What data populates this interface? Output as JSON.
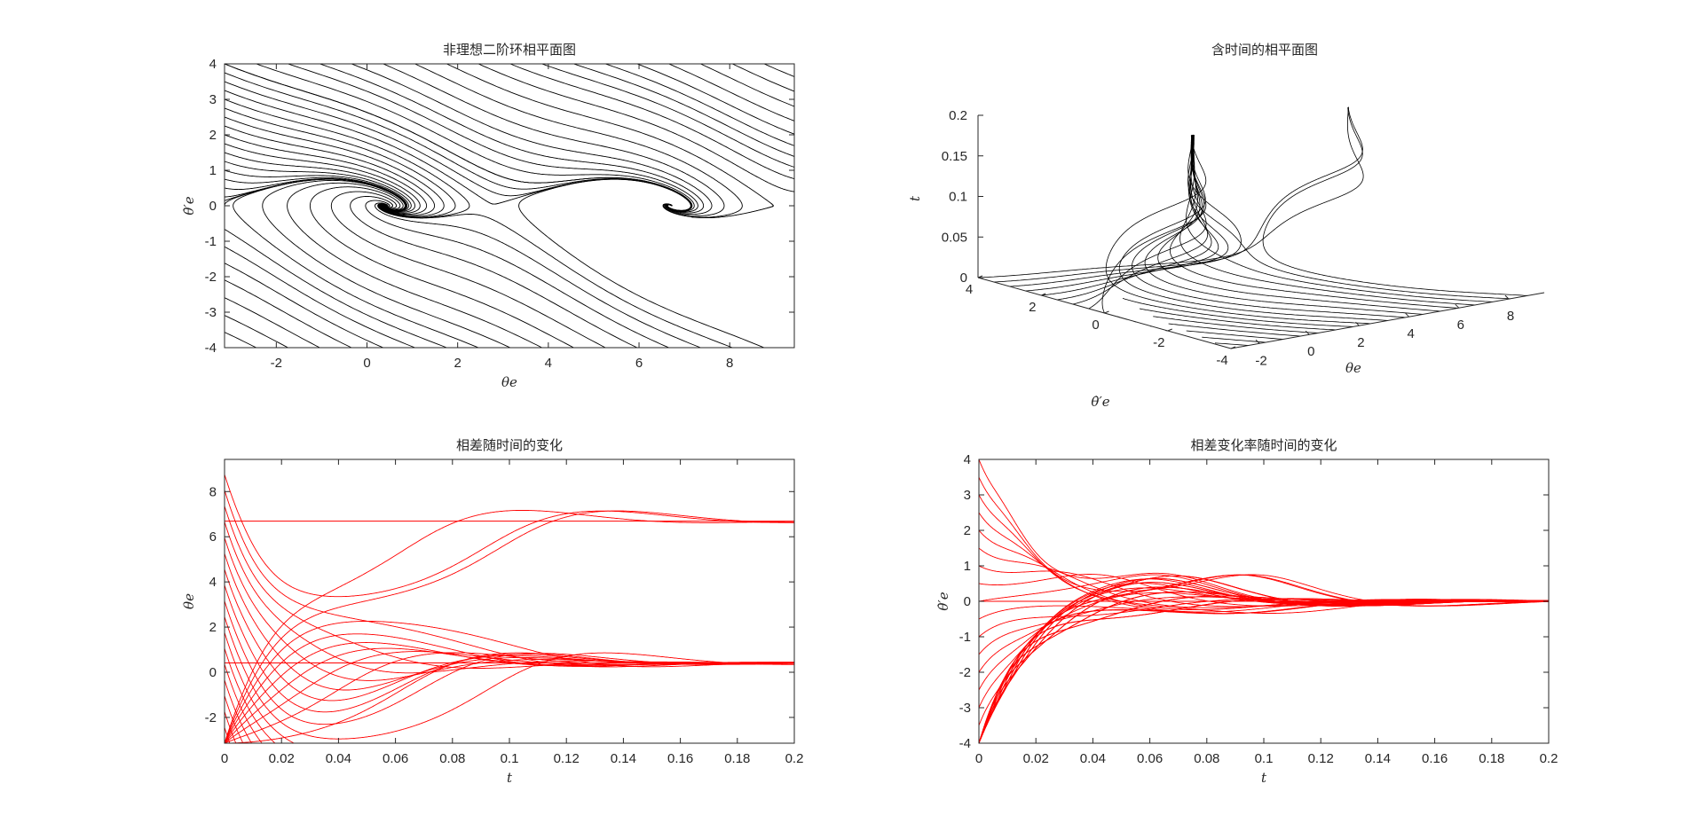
{
  "chart_data": [
    {
      "id": "phase",
      "type": "line",
      "title": "非理想二阶环相平面图",
      "xlabel": "θe",
      "ylabel": "θ̇′e",
      "xlim": [
        -3.1416,
        9.4248
      ],
      "ylim": [
        -4,
        4
      ],
      "xticks": [
        -2,
        0,
        2,
        4,
        6,
        8
      ],
      "yticks": [
        -4,
        -3,
        -2,
        -1,
        0,
        1,
        2,
        3,
        4
      ],
      "color": "#000000",
      "stable_points": [
        [
          0.41,
          0
        ],
        [
          6.69,
          0
        ]
      ],
      "saddle_points": [
        [
          2.73,
          0
        ],
        [
          9.01,
          0
        ]
      ],
      "grid": false
    },
    {
      "id": "phase3d",
      "type": "line",
      "title": "含时间的相平面图",
      "xlabel": "θe",
      "ylabel": "θ̇′e",
      "zlabel": "t",
      "xticks": [
        -2,
        0,
        2,
        4,
        6,
        8
      ],
      "yticks": [
        4,
        2,
        0,
        -2,
        -4
      ],
      "zticks": [
        0,
        0.05,
        0.1,
        0.15,
        0.2
      ],
      "zlim": [
        0,
        0.2
      ],
      "color": "#000000",
      "grid": false
    },
    {
      "id": "theta_t",
      "type": "line",
      "title": "相差随时间的变化",
      "xlabel": "t",
      "ylabel": "θe",
      "xlim": [
        0,
        0.2
      ],
      "ylim": [
        -3.1416,
        9.4248
      ],
      "xticks": [
        0,
        0.02,
        0.04,
        0.06,
        0.08,
        0.1,
        0.12,
        0.14,
        0.16,
        0.18,
        0.2
      ],
      "yticks": [
        -2,
        0,
        2,
        4,
        6,
        8
      ],
      "color": "#ff0000",
      "steady_values": [
        0.41,
        6.69
      ],
      "grid": false
    },
    {
      "id": "rate_t",
      "type": "line",
      "title": "相差变化率随时间的变化",
      "xlabel": "t",
      "ylabel": "θ̇′e",
      "xlim": [
        0,
        0.2
      ],
      "ylim": [
        -4,
        4
      ],
      "xticks": [
        0,
        0.02,
        0.04,
        0.06,
        0.08,
        0.1,
        0.12,
        0.14,
        0.16,
        0.18,
        0.2
      ],
      "yticks": [
        -4,
        -3,
        -2,
        -1,
        0,
        1,
        2,
        3,
        4
      ],
      "color": "#ff0000",
      "steady_values": [
        0
      ],
      "grid": false
    }
  ]
}
